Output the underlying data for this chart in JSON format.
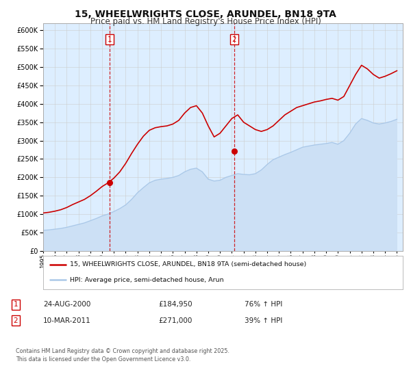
{
  "title": "15, WHEELWRIGHTS CLOSE, ARUNDEL, BN18 9TA",
  "subtitle": "Price paid vs. HM Land Registry's House Price Index (HPI)",
  "title_fontsize": 10,
  "subtitle_fontsize": 8.5,
  "legend_line1": "15, WHEELWRIGHTS CLOSE, ARUNDEL, BN18 9TA (semi-detached house)",
  "legend_line2": "HPI: Average price, semi-detached house, Arun",
  "sale1_date": "24-AUG-2000",
  "sale1_price": "£184,950",
  "sale1_hpi": "76% ↑ HPI",
  "sale1_year": 2000.65,
  "sale1_value": 184950,
  "sale2_date": "10-MAR-2011",
  "sale2_price": "£271,000",
  "sale2_hpi": "39% ↑ HPI",
  "sale2_year": 2011.19,
  "sale2_value": 271000,
  "footer": "Contains HM Land Registry data © Crown copyright and database right 2025.\nThis data is licensed under the Open Government Licence v3.0.",
  "red_color": "#cc0000",
  "blue_color": "#aac8e8",
  "blue_fill": "#cce0f5",
  "background_color": "#ddeeff",
  "grid_color": "#cccccc",
  "xmin": 1995,
  "xmax": 2025.5,
  "ymin": 0,
  "ymax": 620000,
  "years_hpi": [
    1995,
    1995.5,
    1996,
    1996.5,
    1997,
    1997.5,
    1998,
    1998.5,
    1999,
    1999.5,
    2000,
    2000.5,
    2001,
    2001.5,
    2002,
    2002.5,
    2003,
    2003.5,
    2004,
    2004.5,
    2005,
    2005.5,
    2006,
    2006.5,
    2007,
    2007.5,
    2008,
    2008.5,
    2009,
    2009.5,
    2010,
    2010.5,
    2011,
    2011.5,
    2012,
    2012.5,
    2013,
    2013.5,
    2014,
    2014.5,
    2015,
    2015.5,
    2016,
    2016.5,
    2017,
    2017.5,
    2018,
    2018.5,
    2019,
    2019.5,
    2020,
    2020.5,
    2021,
    2021.5,
    2022,
    2022.5,
    2023,
    2023.5,
    2024,
    2024.5,
    2025
  ],
  "hpi_values": [
    56000,
    57000,
    59000,
    61000,
    64000,
    68000,
    72000,
    76000,
    82000,
    88000,
    95000,
    100000,
    107000,
    115000,
    125000,
    140000,
    158000,
    172000,
    185000,
    192000,
    195000,
    197000,
    200000,
    205000,
    215000,
    222000,
    225000,
    215000,
    195000,
    190000,
    192000,
    200000,
    205000,
    210000,
    208000,
    207000,
    210000,
    220000,
    235000,
    248000,
    255000,
    262000,
    268000,
    275000,
    282000,
    285000,
    288000,
    290000,
    292000,
    295000,
    290000,
    300000,
    320000,
    345000,
    360000,
    355000,
    348000,
    345000,
    348000,
    352000,
    358000
  ],
  "years_red": [
    1995,
    1995.5,
    1996,
    1996.5,
    1997,
    1997.5,
    1998,
    1998.5,
    1999,
    1999.5,
    2000,
    2000.5,
    2001,
    2001.5,
    2002,
    2002.5,
    2003,
    2003.5,
    2004,
    2004.5,
    2005,
    2005.5,
    2006,
    2006.5,
    2007,
    2007.5,
    2008,
    2008.5,
    2009,
    2009.5,
    2010,
    2010.5,
    2011,
    2011.5,
    2012,
    2012.5,
    2013,
    2013.5,
    2014,
    2014.5,
    2015,
    2015.5,
    2016,
    2016.5,
    2017,
    2017.5,
    2018,
    2018.5,
    2019,
    2019.5,
    2020,
    2020.5,
    2021,
    2021.5,
    2022,
    2022.5,
    2023,
    2023.5,
    2024,
    2024.5,
    2025
  ],
  "red_values": [
    103000,
    105000,
    108000,
    112000,
    118000,
    126000,
    133000,
    140000,
    150000,
    162000,
    175000,
    185000,
    198000,
    215000,
    238000,
    265000,
    290000,
    312000,
    328000,
    335000,
    338000,
    340000,
    345000,
    355000,
    375000,
    390000,
    395000,
    375000,
    340000,
    310000,
    320000,
    340000,
    360000,
    370000,
    350000,
    340000,
    330000,
    325000,
    330000,
    340000,
    355000,
    370000,
    380000,
    390000,
    395000,
    400000,
    405000,
    408000,
    412000,
    415000,
    410000,
    420000,
    450000,
    480000,
    505000,
    495000,
    480000,
    470000,
    475000,
    482000,
    490000
  ]
}
